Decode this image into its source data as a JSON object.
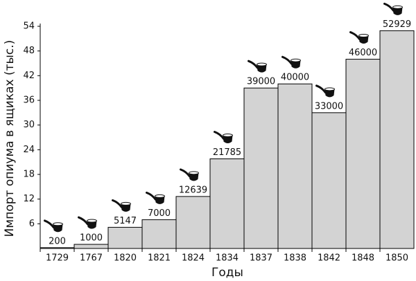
{
  "chart_data": {
    "type": "bar",
    "x_label": "Годы",
    "y_label": "Импорт опиума в ящиках (тыс.)",
    "categories": [
      "1729",
      "1767",
      "1820",
      "1821",
      "1824",
      "1834",
      "1837",
      "1838",
      "1842",
      "1848",
      "1850"
    ],
    "values": [
      0.2,
      1,
      5.147,
      7,
      12.639,
      21.785,
      39,
      40,
      33,
      46,
      52.929
    ],
    "value_labels": [
      "200",
      "1000",
      "5147",
      "7000",
      "12639",
      "21785",
      "39000",
      "40000",
      "33000",
      "46000",
      "52929"
    ],
    "color": "#d3d3d3",
    "ylim": [
      0,
      54
    ],
    "yticks": [
      6,
      12,
      18,
      24,
      30,
      36,
      42,
      48,
      54
    ]
  }
}
